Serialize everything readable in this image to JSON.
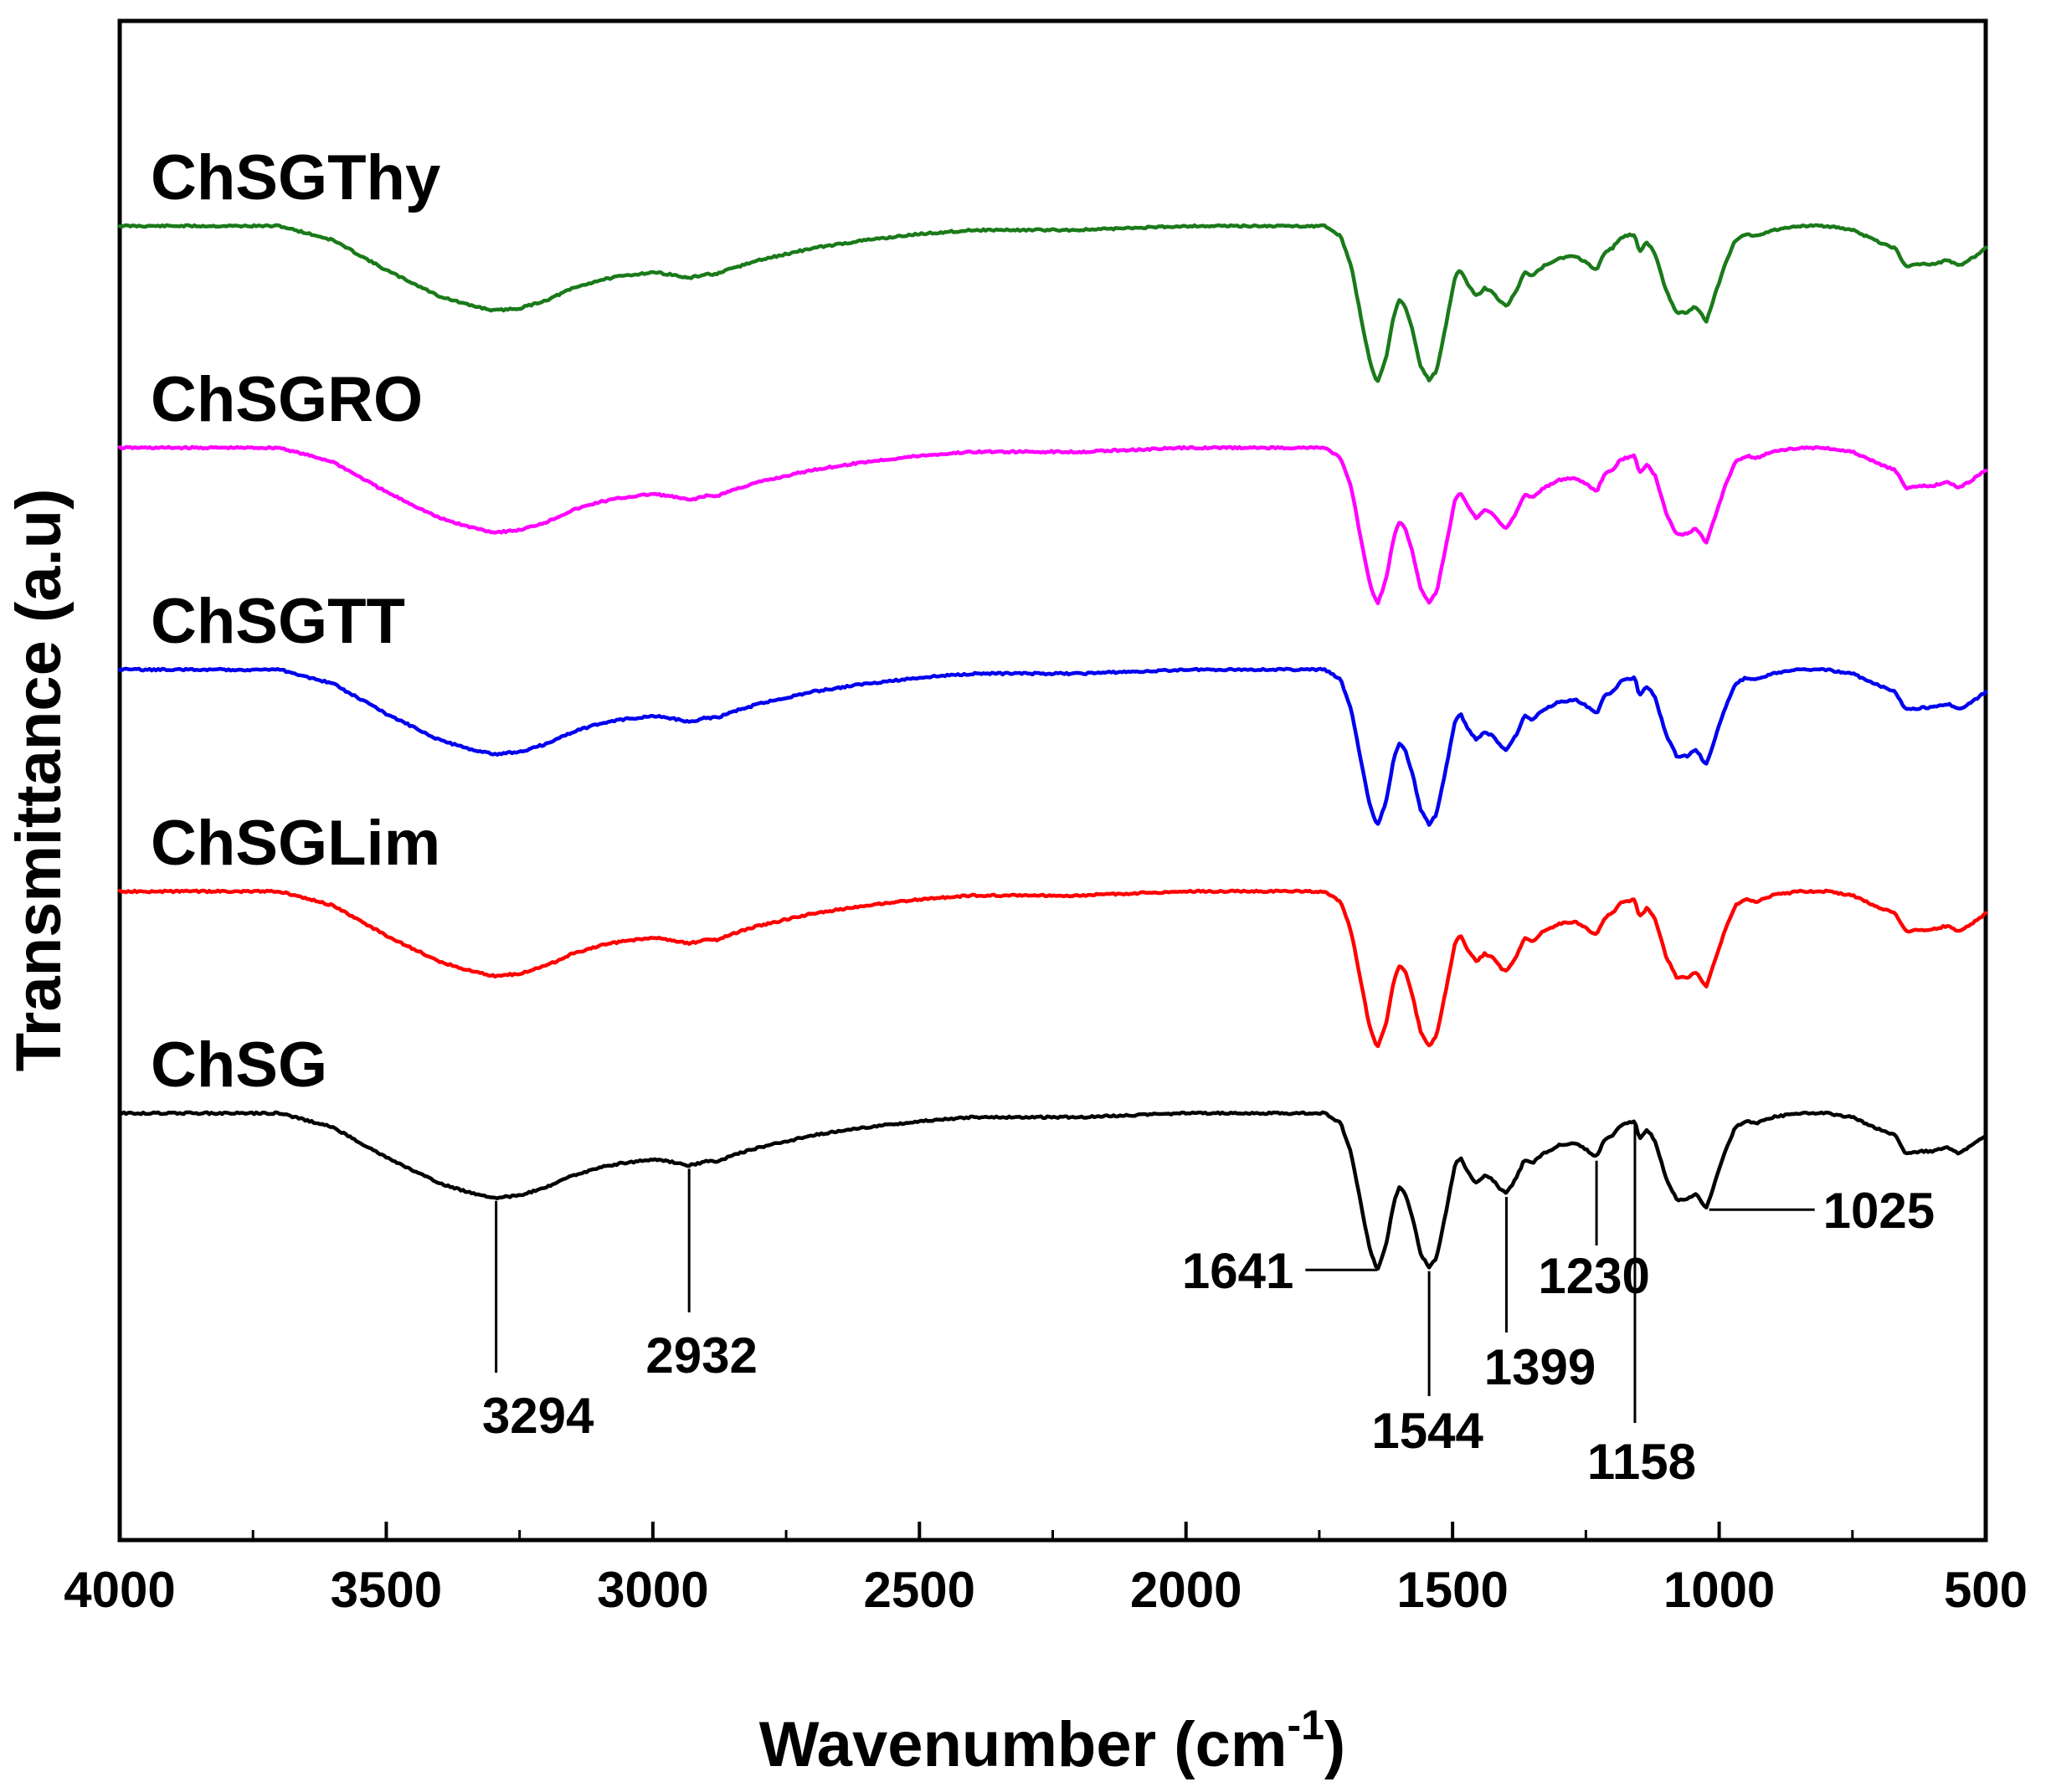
{
  "chart_data": {
    "type": "line",
    "title": "",
    "xlabel": "Wavenumber (cm",
    "xlabel_superscript": "-1",
    "xlabel_close": ")",
    "ylabel": "Transmittance (a.u)",
    "xlim": [
      4000,
      500
    ],
    "x_reversed": true,
    "x_ticks": [
      4000,
      3500,
      3000,
      2500,
      2000,
      1500,
      1000,
      500
    ],
    "x_tick_labels": [
      "4000",
      "3500",
      "3000",
      "2500",
      "2000",
      "1500",
      "1000",
      "500"
    ],
    "y_ticks_shown": false,
    "grid": false,
    "legend": "inline labels above each curve",
    "series": [
      {
        "name": "ChSGThy",
        "color": "#1a7a1a",
        "offset": 4
      },
      {
        "name": "ChSGRO",
        "color": "#ff00ff",
        "offset": 3
      },
      {
        "name": "ChSGTT",
        "color": "#0000ee",
        "offset": 2
      },
      {
        "name": "ChSGLim",
        "color": "#ff0000",
        "offset": 1
      },
      {
        "name": "ChSG",
        "color": "#000000",
        "offset": 0
      }
    ],
    "spectrum_profile": {
      "unit": "relative transmittance drop (0 = baseline, 1 = deepest band)",
      "x": [
        4000,
        3700,
        3600,
        3500,
        3400,
        3350,
        3300,
        3294,
        3250,
        3200,
        3150,
        3100,
        3060,
        3000,
        2970,
        2932,
        2900,
        2880,
        2850,
        2800,
        2700,
        2600,
        2500,
        2400,
        2200,
        2000,
        1900,
        1800,
        1740,
        1710,
        1690,
        1670,
        1655,
        1641,
        1625,
        1610,
        1600,
        1590,
        1575,
        1560,
        1544,
        1530,
        1510,
        1495,
        1485,
        1470,
        1455,
        1440,
        1425,
        1410,
        1399,
        1380,
        1365,
        1350,
        1330,
        1300,
        1270,
        1250,
        1230,
        1215,
        1200,
        1185,
        1175,
        1158,
        1150,
        1135,
        1120,
        1100,
        1080,
        1060,
        1045,
        1035,
        1025,
        1010,
        990,
        970,
        950,
        930,
        900,
        850,
        800,
        750,
        700,
        670,
        650,
        620,
        600,
        570,
        550,
        520,
        500
      ],
      "drop": [
        0.0,
        0.0,
        0.07,
        0.22,
        0.35,
        0.39,
        0.42,
        0.42,
        0.41,
        0.37,
        0.31,
        0.27,
        0.25,
        0.23,
        0.24,
        0.26,
        0.24,
        0.24,
        0.21,
        0.17,
        0.11,
        0.07,
        0.04,
        0.02,
        0.02,
        0.0,
        0.0,
        0.0,
        0.0,
        0.05,
        0.2,
        0.48,
        0.68,
        0.78,
        0.66,
        0.44,
        0.37,
        0.39,
        0.52,
        0.7,
        0.77,
        0.72,
        0.46,
        0.25,
        0.22,
        0.3,
        0.35,
        0.31,
        0.33,
        0.38,
        0.4,
        0.32,
        0.23,
        0.25,
        0.2,
        0.16,
        0.15,
        0.18,
        0.22,
        0.13,
        0.11,
        0.06,
        0.05,
        0.04,
        0.13,
        0.08,
        0.14,
        0.32,
        0.43,
        0.43,
        0.4,
        0.43,
        0.48,
        0.36,
        0.2,
        0.07,
        0.04,
        0.05,
        0.02,
        0.0,
        0.0,
        0.02,
        0.08,
        0.11,
        0.2,
        0.19,
        0.19,
        0.17,
        0.2,
        0.15,
        0.11
      ]
    },
    "annotations": [
      {
        "label": "3294",
        "x": 3294
      },
      {
        "label": "2932",
        "x": 2932
      },
      {
        "label": "1641",
        "x": 1641
      },
      {
        "label": "1544",
        "x": 1544
      },
      {
        "label": "1399",
        "x": 1399
      },
      {
        "label": "1230",
        "x": 1230
      },
      {
        "label": "1158",
        "x": 1158
      },
      {
        "label": "1025",
        "x": 1025
      }
    ]
  }
}
